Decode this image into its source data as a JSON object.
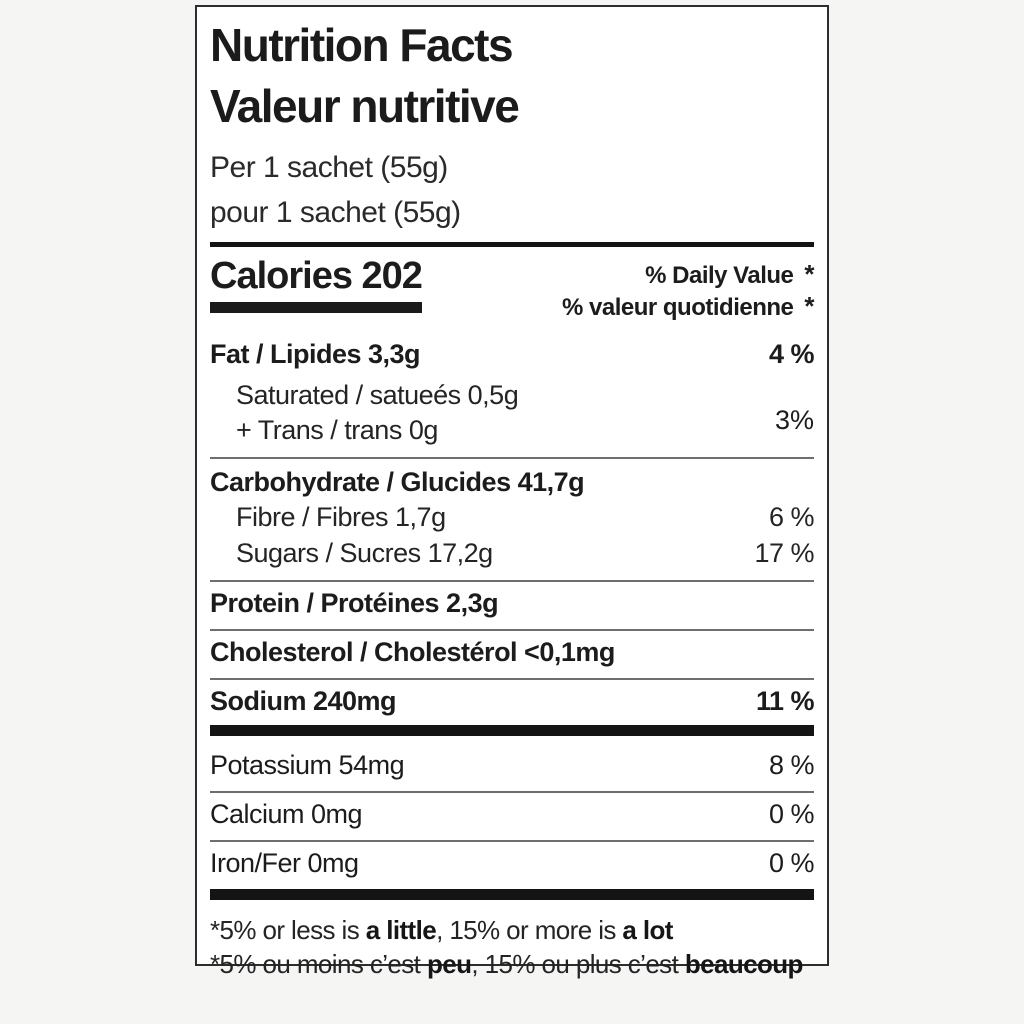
{
  "label": {
    "title_en": "Nutrition Facts",
    "title_fr": "Valeur nutritive",
    "serving_en": "Per 1 sachet (55g)",
    "serving_fr": "pour 1 sachet (55g)",
    "calories_text": "Calories 202",
    "daily_value_en": "% Daily Value",
    "daily_value_fr": "% valeur quotidienne",
    "daily_value_star": "*",
    "nutrients": {
      "fat": {
        "label": "Fat / Lipides 3,3g",
        "dv": "4 %"
      },
      "saturated": {
        "label": "Saturated / satueés 0,5g"
      },
      "trans": {
        "label": "+ Trans / trans 0g"
      },
      "saturated_trans_dv": "3%",
      "carbohydrate": {
        "label": "Carbohydrate / Glucides 41,7g"
      },
      "fibre": {
        "label": "Fibre / Fibres 1,7g",
        "dv": "6 %"
      },
      "sugars": {
        "label": "Sugars / Sucres 17,2g",
        "dv": "17 %"
      },
      "protein": {
        "label": "Protein / Protéines 2,3g"
      },
      "cholesterol": {
        "label": "Cholesterol / Cholestérol <0,1mg"
      },
      "sodium": {
        "label": "Sodium 240mg",
        "dv": "11 %"
      },
      "potassium": {
        "label": "Potassium 54mg",
        "dv": "8 %"
      },
      "calcium": {
        "label": "Calcium 0mg",
        "dv": "0 %"
      },
      "iron": {
        "label": "Iron/Fer 0mg",
        "dv": "0 %"
      }
    },
    "footnote_en": {
      "p1": "*5% or less is ",
      "b1": "a little",
      "p2": ", 15% or more is ",
      "b2": "a lot"
    },
    "footnote_fr": {
      "p1": "*5% ou moins c’est ",
      "b1": "peu",
      "p2": ", 15% ou plus c’est ",
      "b2": "beaucoup"
    }
  }
}
